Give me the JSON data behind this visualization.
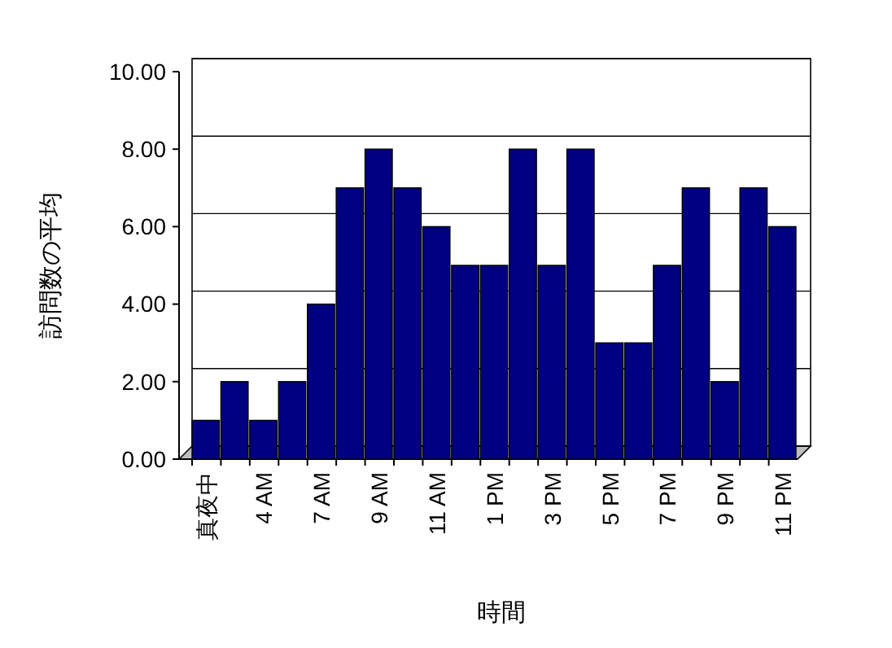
{
  "chart_data": {
    "type": "bar",
    "xlabel": "時間",
    "ylabel": "訪問数の平均",
    "categories": [
      "真夜中",
      null,
      "4 AM",
      null,
      "7 AM",
      null,
      "9 AM",
      null,
      "11 AM",
      null,
      "1 PM",
      null,
      "3 PM",
      null,
      "5 PM",
      null,
      "7 PM",
      null,
      "9 PM",
      null,
      "11 PM"
    ],
    "values": [
      1,
      2,
      1,
      2,
      4,
      7,
      8,
      7,
      6,
      5,
      5,
      8,
      5,
      8,
      3,
      3,
      5,
      7,
      2,
      7,
      6
    ],
    "color": "#000080",
    "ylim": [
      0,
      10
    ],
    "yticks": [
      {
        "value": 0,
        "label": "0.00"
      },
      {
        "value": 2,
        "label": "2.00"
      },
      {
        "value": 4,
        "label": "4.00"
      },
      {
        "value": 6,
        "label": "6.00"
      },
      {
        "value": 8,
        "label": "8.00"
      },
      {
        "value": 10,
        "label": "10.00"
      }
    ],
    "grid": "y"
  }
}
